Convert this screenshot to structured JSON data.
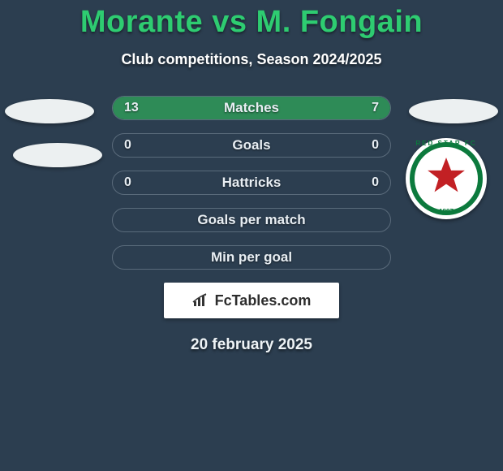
{
  "title": "Morante vs M. Fongain",
  "subtitle": "Club competitions, Season 2024/2025",
  "date": "20 february 2025",
  "colors": {
    "background": "#2c3e50",
    "accent_green": "#2ecc71",
    "bar_fill": "#2e8b57",
    "pill_border": "#5a6b7b",
    "text": "#e8eef3"
  },
  "rows": [
    {
      "label": "Matches",
      "left": "13",
      "right": "7",
      "left_pct": 65,
      "right_pct": 35
    },
    {
      "label": "Goals",
      "left": "0",
      "right": "0",
      "left_pct": 0,
      "right_pct": 0
    },
    {
      "label": "Hattricks",
      "left": "0",
      "right": "0",
      "left_pct": 0,
      "right_pct": 0
    },
    {
      "label": "Goals per match",
      "left": "",
      "right": "",
      "left_pct": 0,
      "right_pct": 0,
      "label_only": true
    },
    {
      "label": "Min per goal",
      "left": "",
      "right": "",
      "left_pct": 0,
      "right_pct": 0,
      "label_only": true
    }
  ],
  "club_badge": {
    "arc_text": "RED STAR FC",
    "year": "1897",
    "ring_color": "#0c7a3d",
    "star_color": "#c22024"
  },
  "brand": {
    "text": "FcTables.com"
  }
}
